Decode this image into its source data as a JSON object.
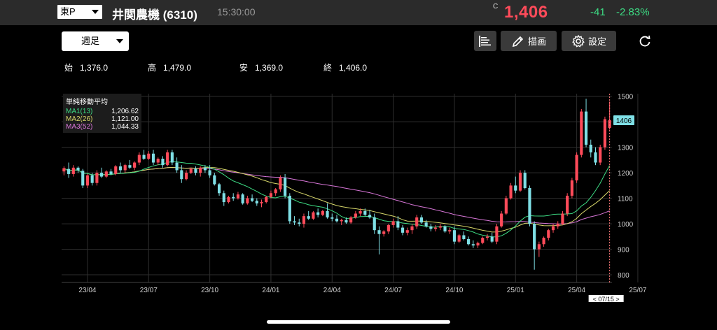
{
  "header": {
    "market": "東P",
    "stock_name": "井関農機 (6310)",
    "time": "15:30:00",
    "price_marker": "C",
    "price": "1,406",
    "change": "-41",
    "change_pct": "-2.83%"
  },
  "toolbar": {
    "period": "週足",
    "draw_label": "描画",
    "settings_label": "設定"
  },
  "ohlc": {
    "open_label": "始",
    "open": "1,376.0",
    "high_label": "高",
    "high": "1,479.0",
    "low_label": "安",
    "low": "1,369.0",
    "close_label": "終",
    "close": "1,406.0"
  },
  "legend": {
    "title": "単純移動平均",
    "ma1_label": "MA1(13)",
    "ma1_value": "1,206.62",
    "ma2_label": "MA2(26)",
    "ma2_value": "1,121.00",
    "ma3_label": "MA3(52)",
    "ma3_value": "1,044.33"
  },
  "colors": {
    "up": "#ff4b5a",
    "down": "#7fe0e6",
    "ma1": "#3ddc84",
    "ma2": "#d8d86a",
    "ma3": "#d876d8",
    "accent_price": "#ff4b5a",
    "accent_change": "#3ddc84"
  },
  "chart_data": {
    "type": "candlestick",
    "title": "",
    "xlabel": "",
    "ylabel": "",
    "ylim": [
      770,
      1510
    ],
    "y_ticks": [
      "1500",
      "1400",
      "1300",
      "1200",
      "1100",
      "1000",
      "900",
      "800"
    ],
    "y_tick_values": [
      1500,
      1400,
      1300,
      1200,
      1100,
      1000,
      900,
      800
    ],
    "x_ticks": [
      "23/04",
      "23/07",
      "23/10",
      "24/01",
      "24/04",
      "24/07",
      "24/10",
      "25/01",
      "25/04",
      "25/07"
    ],
    "x_tick_index": [
      5,
      18,
      31,
      44,
      57,
      70,
      83,
      96,
      109,
      122
    ],
    "last_price_label": "1406",
    "crosshair_label": "< 07/15 >",
    "candles": [
      [
        1205,
        1225,
        1190,
        1218
      ],
      [
        1215,
        1240,
        1180,
        1195
      ],
      [
        1195,
        1230,
        1185,
        1220
      ],
      [
        1220,
        1225,
        1200,
        1210
      ],
      [
        1208,
        1215,
        1140,
        1150
      ],
      [
        1150,
        1195,
        1140,
        1190
      ],
      [
        1190,
        1200,
        1150,
        1160
      ],
      [
        1160,
        1210,
        1150,
        1200
      ],
      [
        1200,
        1220,
        1180,
        1185
      ],
      [
        1185,
        1210,
        1180,
        1205
      ],
      [
        1205,
        1215,
        1190,
        1195
      ],
      [
        1195,
        1230,
        1190,
        1225
      ],
      [
        1225,
        1240,
        1200,
        1210
      ],
      [
        1210,
        1235,
        1200,
        1230
      ],
      [
        1230,
        1250,
        1215,
        1220
      ],
      [
        1220,
        1245,
        1210,
        1240
      ],
      [
        1240,
        1280,
        1230,
        1270
      ],
      [
        1270,
        1290,
        1250,
        1255
      ],
      [
        1255,
        1285,
        1250,
        1275
      ],
      [
        1275,
        1290,
        1230,
        1240
      ],
      [
        1240,
        1260,
        1230,
        1255
      ],
      [
        1255,
        1265,
        1220,
        1230
      ],
      [
        1230,
        1290,
        1225,
        1280
      ],
      [
        1280,
        1290,
        1230,
        1240
      ],
      [
        1240,
        1260,
        1200,
        1210
      ],
      [
        1210,
        1230,
        1160,
        1175
      ],
      [
        1175,
        1210,
        1170,
        1200
      ],
      [
        1200,
        1220,
        1195,
        1215
      ],
      [
        1215,
        1225,
        1190,
        1200
      ],
      [
        1200,
        1225,
        1185,
        1220
      ],
      [
        1220,
        1230,
        1200,
        1210
      ],
      [
        1210,
        1230,
        1180,
        1190
      ],
      [
        1190,
        1200,
        1150,
        1155
      ],
      [
        1155,
        1160,
        1110,
        1120
      ],
      [
        1120,
        1130,
        1070,
        1085
      ],
      [
        1085,
        1110,
        1080,
        1105
      ],
      [
        1105,
        1120,
        1090,
        1100
      ],
      [
        1100,
        1125,
        1095,
        1115
      ],
      [
        1115,
        1120,
        1075,
        1080
      ],
      [
        1080,
        1110,
        1075,
        1100
      ],
      [
        1100,
        1115,
        1085,
        1090
      ],
      [
        1090,
        1100,
        1070,
        1080
      ],
      [
        1080,
        1095,
        1065,
        1085
      ],
      [
        1085,
        1110,
        1080,
        1105
      ],
      [
        1105,
        1130,
        1100,
        1120
      ],
      [
        1120,
        1140,
        1110,
        1135
      ],
      [
        1135,
        1190,
        1125,
        1180
      ],
      [
        1180,
        1195,
        1100,
        1110
      ],
      [
        1110,
        1120,
        1000,
        1010
      ],
      [
        1010,
        1030,
        995,
        1005
      ],
      [
        1005,
        1020,
        990,
        1000
      ],
      [
        1000,
        1040,
        985,
        1030
      ],
      [
        1030,
        1050,
        1015,
        1020
      ],
      [
        1020,
        1050,
        1015,
        1045
      ],
      [
        1045,
        1060,
        1025,
        1035
      ],
      [
        1035,
        1055,
        1030,
        1050
      ],
      [
        1050,
        1080,
        1020,
        1025
      ],
      [
        1025,
        1040,
        1010,
        1020
      ],
      [
        1020,
        1035,
        1005,
        1010
      ],
      [
        1010,
        1020,
        995,
        1015
      ],
      [
        1015,
        1025,
        1000,
        1005
      ],
      [
        1005,
        1030,
        1000,
        1025
      ],
      [
        1025,
        1050,
        1020,
        1040
      ],
      [
        1040,
        1060,
        1030,
        1050
      ],
      [
        1050,
        1060,
        1030,
        1035
      ],
      [
        1035,
        1055,
        1020,
        1025
      ],
      [
        1025,
        1040,
        960,
        975
      ],
      [
        975,
        990,
        880,
        960
      ],
      [
        960,
        975,
        950,
        970
      ],
      [
        970,
        1000,
        960,
        995
      ],
      [
        995,
        1020,
        985,
        1010
      ],
      [
        1010,
        1030,
        975,
        985
      ],
      [
        985,
        995,
        955,
        965
      ],
      [
        965,
        985,
        955,
        975
      ],
      [
        975,
        1000,
        960,
        990
      ],
      [
        990,
        1035,
        980,
        1025
      ],
      [
        1025,
        1035,
        1000,
        1005
      ],
      [
        1005,
        1015,
        985,
        990
      ],
      [
        990,
        1000,
        970,
        980
      ],
      [
        980,
        995,
        970,
        985
      ],
      [
        985,
        1000,
        975,
        990
      ],
      [
        990,
        995,
        965,
        970
      ],
      [
        970,
        985,
        960,
        975
      ],
      [
        975,
        990,
        920,
        930
      ],
      [
        930,
        960,
        925,
        955
      ],
      [
        955,
        970,
        935,
        940
      ],
      [
        940,
        950,
        915,
        920
      ],
      [
        920,
        935,
        905,
        915
      ],
      [
        915,
        930,
        905,
        925
      ],
      [
        925,
        950,
        920,
        945
      ],
      [
        945,
        960,
        935,
        950
      ],
      [
        950,
        965,
        925,
        930
      ],
      [
        930,
        1000,
        920,
        990
      ],
      [
        990,
        1050,
        985,
        1040
      ],
      [
        1040,
        1110,
        1035,
        1100
      ],
      [
        1100,
        1160,
        1095,
        1150
      ],
      [
        1150,
        1185,
        1120,
        1130
      ],
      [
        1130,
        1210,
        1125,
        1200
      ],
      [
        1200,
        1210,
        1135,
        1140
      ],
      [
        1140,
        1150,
        990,
        1000
      ],
      [
        1000,
        1010,
        820,
        900
      ],
      [
        900,
        930,
        870,
        920
      ],
      [
        920,
        950,
        910,
        945
      ],
      [
        945,
        980,
        935,
        975
      ],
      [
        975,
        1000,
        965,
        990
      ],
      [
        990,
        1010,
        980,
        1000
      ],
      [
        1000,
        1050,
        995,
        1040
      ],
      [
        1040,
        1120,
        1030,
        1110
      ],
      [
        1110,
        1180,
        1100,
        1170
      ],
      [
        1170,
        1280,
        1160,
        1270
      ],
      [
        1270,
        1450,
        1260,
        1440
      ],
      [
        1440,
        1490,
        1300,
        1310
      ],
      [
        1310,
        1330,
        1260,
        1280
      ],
      [
        1280,
        1300,
        1230,
        1240
      ],
      [
        1240,
        1310,
        1230,
        1300
      ],
      [
        1300,
        1420,
        1290,
        1410
      ],
      [
        1376,
        1479,
        1369,
        1406
      ]
    ]
  }
}
